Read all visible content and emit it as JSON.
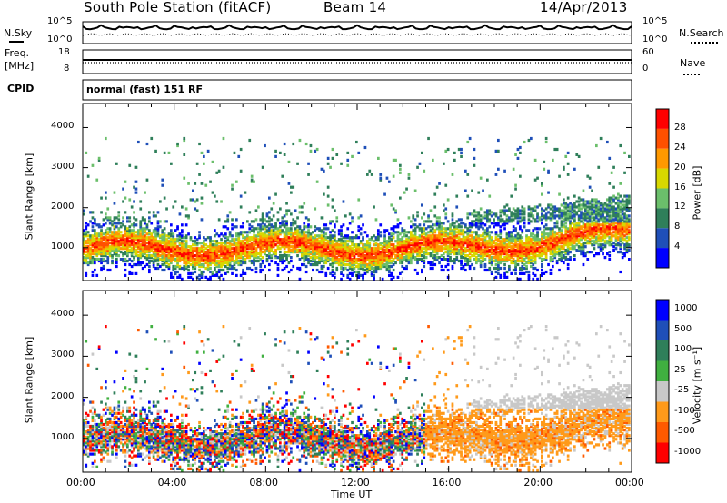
{
  "header": {
    "station": "South Pole Station (fitACF)",
    "beam": "Beam 14",
    "date": "14/Apr/2013"
  },
  "top_panels": {
    "nsky_label": "N.Sky",
    "nsearch_label": "N.Search",
    "noise_ticks": [
      "10^5",
      "10^0"
    ],
    "freq_label_1": "Freq.",
    "freq_label_2": "[MHz]",
    "freq_ticks": [
      "18",
      "8"
    ],
    "nave_ticks": [
      "60",
      "0"
    ],
    "nave_label": "Nave",
    "cpid_label": "CPID",
    "cpid_text": "normal (fast) 151 RF"
  },
  "colors": {
    "power": [
      "#0000ff",
      "#1f4fb8",
      "#2f7f5a",
      "#6bbf6b",
      "#d8d800",
      "#ff9900",
      "#ff5000",
      "#ff0000"
    ],
    "velocity": [
      "#ff0000",
      "#ff5a00",
      "#ff9a1a",
      "#c8c8c8",
      "#40b040",
      "#2f7f5a",
      "#1f4fb8",
      "#0000ff"
    ]
  },
  "chart_data": [
    {
      "type": "heatmap",
      "name": "power",
      "ylabel": "Slant Range [km]",
      "ylim": [
        180,
        4600
      ],
      "yticks": [
        "1000",
        "2000",
        "3000",
        "4000"
      ],
      "xlim_hours": [
        0,
        24
      ],
      "colorbar_label": "Power [dB]",
      "colorbar_ticks": [
        "4",
        "8",
        "12",
        "16",
        "20",
        "24",
        "28"
      ],
      "colorbar_range": [
        0,
        32
      ]
    },
    {
      "type": "heatmap",
      "name": "velocity",
      "ylabel": "Slant Range [km]",
      "ylim": [
        180,
        4600
      ],
      "yticks": [
        "1000",
        "2000",
        "3000",
        "4000"
      ],
      "xlim_hours": [
        0,
        24
      ],
      "xticks": [
        "00:00",
        "04:00",
        "08:00",
        "12:00",
        "16:00",
        "20:00",
        "00:00"
      ],
      "xlabel": "Time UT",
      "colorbar_label": "Velocity [m s⁻¹]",
      "colorbar_ticks": [
        "1000",
        "500",
        "100",
        "25",
        "-25",
        "-100",
        "-500",
        "-1000"
      ]
    }
  ]
}
